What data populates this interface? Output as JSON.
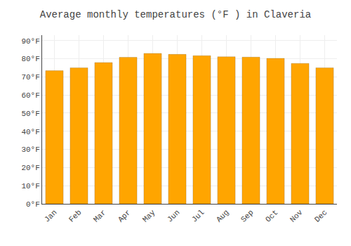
{
  "chart_data": {
    "type": "bar",
    "title": "Average monthly temperatures (°F ) in Claveria",
    "categories": [
      "Jan",
      "Feb",
      "Mar",
      "Apr",
      "May",
      "Jun",
      "Jul",
      "Aug",
      "Sep",
      "Oct",
      "Nov",
      "Dec"
    ],
    "values": [
      73.4,
      75.0,
      77.9,
      80.8,
      82.9,
      82.4,
      81.7,
      81.1,
      80.9,
      80.2,
      77.4,
      75.0
    ],
    "color": "#FFA500",
    "ylim": [
      0,
      93
    ],
    "yticks": [
      {
        "value": 0,
        "label": "0°F"
      },
      {
        "value": 10,
        "label": "10°F"
      },
      {
        "value": 20,
        "label": "20°F"
      },
      {
        "value": 30,
        "label": "30°F"
      },
      {
        "value": 40,
        "label": "40°F"
      },
      {
        "value": 50,
        "label": "50°F"
      },
      {
        "value": 60,
        "label": "60°F"
      },
      {
        "value": 70,
        "label": "70°F"
      },
      {
        "value": 80,
        "label": "80°F"
      },
      {
        "value": 90,
        "label": "90°F"
      }
    ],
    "grid": true
  }
}
